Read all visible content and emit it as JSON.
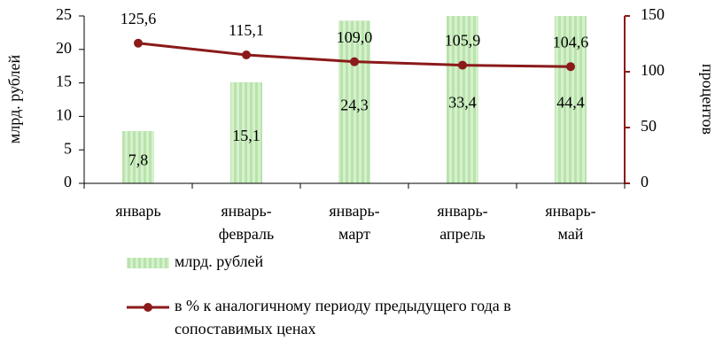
{
  "chart_data": {
    "type": "bar+line",
    "categories": [
      "январь",
      "январь-февраль",
      "январь-март",
      "январь-апрель",
      "январь-май"
    ],
    "ylabel": "млрд. рублей",
    "y2label": "процентов",
    "ylim": [
      0,
      25
    ],
    "yticks": [
      0,
      5,
      10,
      15,
      20,
      25
    ],
    "y2lim": [
      0,
      150
    ],
    "y2ticks": [
      0,
      50,
      100,
      150
    ],
    "legend": "bottom",
    "series": [
      {
        "name": "млрд. рублей",
        "type": "bar",
        "color": "#b8e4ab",
        "values": [
          7.8,
          15.1,
          24.3,
          33.4,
          44.4
        ],
        "value_labels": [
          "7,8",
          "15,1",
          "24,3",
          "33,4",
          "44,4"
        ]
      },
      {
        "name": "в % к аналогичному периоду предыдущего года в сопоставимых ценах",
        "type": "line",
        "color": "#8b1a1a",
        "axis": "y2",
        "values": [
          125.6,
          115.1,
          109.0,
          105.9,
          104.6
        ],
        "value_labels": [
          "125,6",
          "115,1",
          "109,0",
          "105,9",
          "104,6"
        ]
      }
    ]
  }
}
